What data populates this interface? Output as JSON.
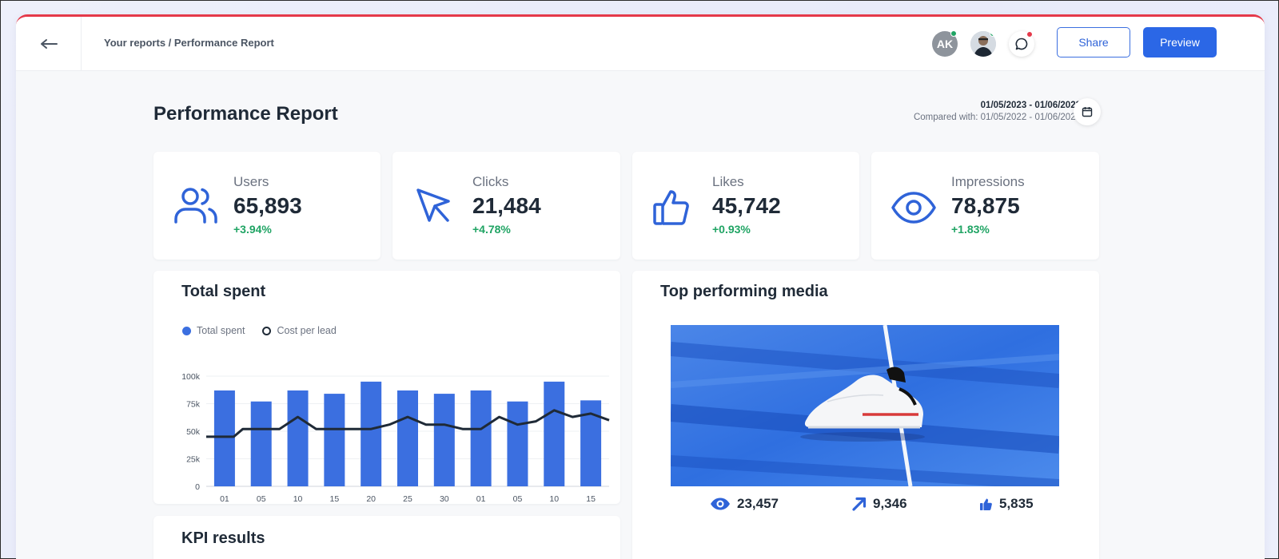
{
  "header": {
    "breadcrumb": "Your reports / Performance Report",
    "avatar_initials": "AK",
    "share_label": "Share",
    "preview_label": "Preview"
  },
  "report": {
    "title": "Performance Report",
    "date_range": "01/05/2023 - 01/06/2023",
    "compared_with": "Compared with: 01/05/2022 - 01/06/2022"
  },
  "kpis": [
    {
      "label": "Users",
      "value": "65,893",
      "delta": "+3.94%",
      "icon": "users-icon"
    },
    {
      "label": "Clicks",
      "value": "21,484",
      "delta": "+4.78%",
      "icon": "cursor-icon"
    },
    {
      "label": "Likes",
      "value": "45,742",
      "delta": "+0.93%",
      "icon": "thumbs-up-icon"
    },
    {
      "label": "Impressions",
      "value": "78,875",
      "delta": "+1.83%",
      "icon": "eye-icon"
    }
  ],
  "total_spent": {
    "title": "Total spent",
    "legend": [
      "Total spent",
      "Cost per lead"
    ]
  },
  "chart_data": {
    "type": "bar",
    "title": "Total spent",
    "categories": [
      "01",
      "05",
      "10",
      "15",
      "20",
      "25",
      "30",
      "01",
      "05",
      "10",
      "15"
    ],
    "y_ticks": [
      "100k",
      "75k",
      "50k",
      "25k",
      "0"
    ],
    "ylim": [
      0,
      100000
    ],
    "series": [
      {
        "name": "Total spent",
        "type": "bar",
        "values": [
          87000,
          77000,
          87000,
          84000,
          95000,
          87000,
          84000,
          87000,
          77000,
          95000,
          78000
        ]
      },
      {
        "name": "Cost per lead",
        "type": "line",
        "x": [
          0,
          0.25,
          0.5,
          1,
          1.5,
          2,
          2.5,
          3,
          3.5,
          4,
          4.5,
          5,
          5.5,
          6,
          6.5,
          7,
          7.5,
          8,
          8.5,
          9,
          9.5,
          10,
          10.5
        ],
        "values": [
          45000,
          45000,
          52000,
          52000,
          52000,
          63000,
          52000,
          52000,
          52000,
          52000,
          56000,
          63000,
          56000,
          56000,
          52000,
          52000,
          63000,
          56000,
          59000,
          69000,
          63000,
          66000,
          60000
        ]
      }
    ],
    "grid": true,
    "legend_position": "top-left",
    "colors": {
      "bar": "#3b6fe0",
      "line": "#1f2a37"
    }
  },
  "kpi_results": {
    "title": "KPI results"
  },
  "top_media": {
    "title": "Top performing media",
    "views": "23,457",
    "shares": "9,346",
    "likes": "5,835"
  },
  "colors": {
    "accent": "#2b67e6",
    "positive": "#20a464",
    "icon_blue": "#2f63d8"
  }
}
